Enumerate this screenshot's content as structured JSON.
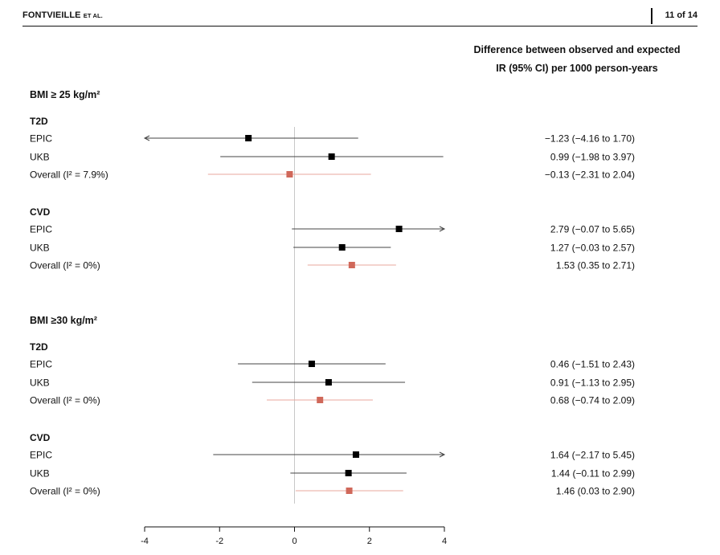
{
  "header": {
    "author": "FONTVIEILLE",
    "author_suffix": "ET AL.",
    "page": "11 of 14"
  },
  "colors": {
    "study": "#000000",
    "overall": "#d0685a",
    "overall_line": "#e8a79d",
    "line": "#444444",
    "refline": "#c8c8c8"
  },
  "chart_data": {
    "type": "forest",
    "title": "Difference between observed and expected",
    "subtitle": "IR (95% CI) per 1000 person-years",
    "xlim": [
      -4,
      4
    ],
    "xticks": [
      -4,
      -2,
      0,
      2,
      4
    ],
    "xtick_labels": [
      "-4",
      "-2",
      "0",
      "2",
      "4"
    ],
    "reference_line": 0,
    "groups": [
      {
        "name": "BMI ≥ 25 kg/m²",
        "subgroups": [
          {
            "name": "T2D",
            "rows": [
              {
                "label": "EPIC",
                "estimate": -1.23,
                "lower": -4.16,
                "upper": 1.7,
                "text": "−1.23 (−4.16 to 1.70)",
                "overall": false
              },
              {
                "label": "UKB",
                "estimate": 0.99,
                "lower": -1.98,
                "upper": 3.97,
                "text": "0.99 (−1.98 to 3.97)",
                "overall": false
              },
              {
                "label": "Overall (I² = 7.9%)",
                "estimate": -0.13,
                "lower": -2.31,
                "upper": 2.04,
                "text": "−0.13 (−2.31 to 2.04)",
                "overall": true
              }
            ]
          },
          {
            "name": "CVD",
            "rows": [
              {
                "label": "EPIC",
                "estimate": 2.79,
                "lower": -0.07,
                "upper": 5.65,
                "text": "2.79 (−0.07 to 5.65)",
                "overall": false
              },
              {
                "label": "UKB",
                "estimate": 1.27,
                "lower": -0.03,
                "upper": 2.57,
                "text": "1.27 (−0.03 to 2.57)",
                "overall": false
              },
              {
                "label": "Overall (I² = 0%)",
                "estimate": 1.53,
                "lower": 0.35,
                "upper": 2.71,
                "text": "1.53 (0.35 to 2.71)",
                "overall": true
              }
            ]
          }
        ]
      },
      {
        "name": "BMI ≥30 kg/m²",
        "subgroups": [
          {
            "name": "T2D",
            "rows": [
              {
                "label": "EPIC",
                "estimate": 0.46,
                "lower": -1.51,
                "upper": 2.43,
                "text": "0.46 (−1.51 to 2.43)",
                "overall": false
              },
              {
                "label": "UKB",
                "estimate": 0.91,
                "lower": -1.13,
                "upper": 2.95,
                "text": "0.91 (−1.13 to 2.95)",
                "overall": false
              },
              {
                "label": "Overall (I² = 0%)",
                "estimate": 0.68,
                "lower": -0.74,
                "upper": 2.09,
                "text": "0.68 (−0.74 to 2.09)",
                "overall": true
              }
            ]
          },
          {
            "name": "CVD",
            "rows": [
              {
                "label": "EPIC",
                "estimate": 1.64,
                "lower": -2.17,
                "upper": 5.45,
                "text": "1.64 (−2.17 to 5.45)",
                "overall": false
              },
              {
                "label": "UKB",
                "estimate": 1.44,
                "lower": -0.11,
                "upper": 2.99,
                "text": "1.44 (−0.11 to 2.99)",
                "overall": false
              },
              {
                "label": "Overall (I² = 0%)",
                "estimate": 1.46,
                "lower": 0.03,
                "upper": 2.9,
                "text": "1.46 (0.03 to 2.90)",
                "overall": true
              }
            ]
          }
        ]
      }
    ]
  }
}
